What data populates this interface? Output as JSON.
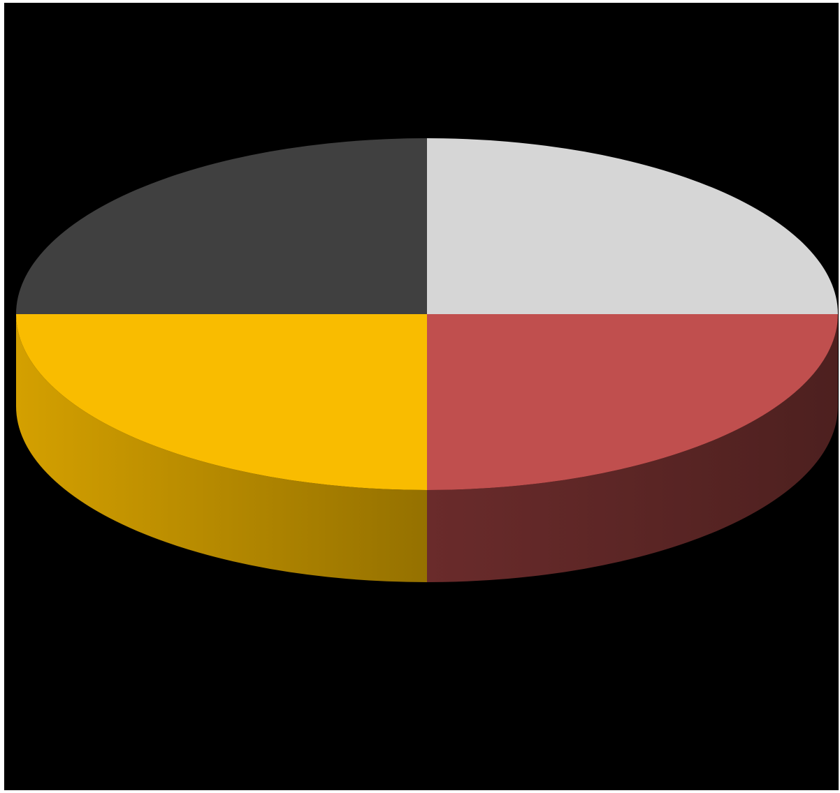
{
  "chart_data": {
    "type": "pie",
    "style": "3d",
    "start": "top",
    "direction": "clockwise",
    "values": [
      25,
      25,
      25,
      25
    ],
    "colors": [
      "#d6d6d6",
      "#c04f4e",
      "#f9bc00",
      "#404040"
    ],
    "background": "#000000",
    "title": "",
    "legend": "none",
    "data_labels": "none"
  }
}
